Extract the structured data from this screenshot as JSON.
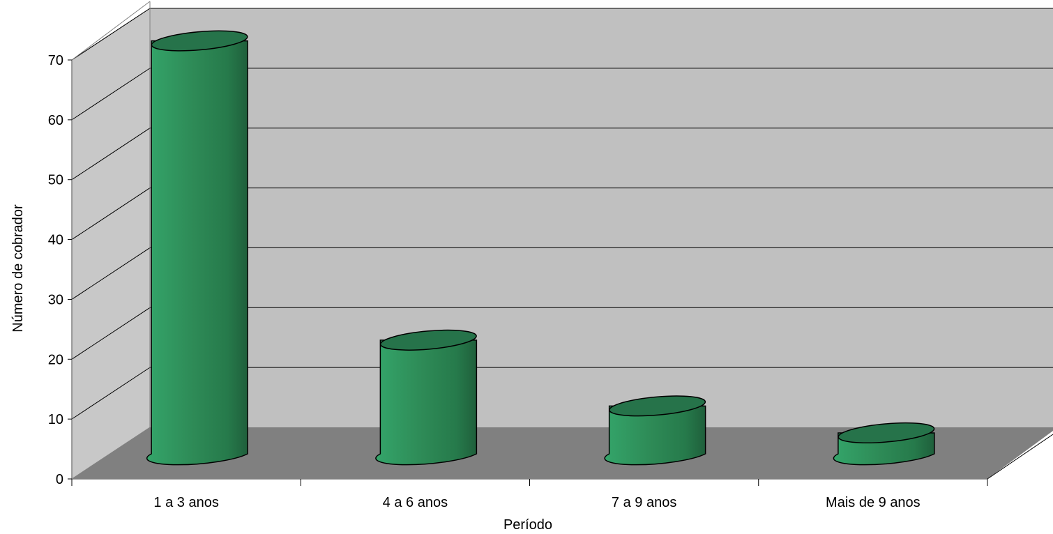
{
  "chart_data": {
    "type": "bar",
    "style": "3d-cylinder",
    "categories": [
      "1 a 3 anos",
      "4 a 6 anos",
      "7 a 9 anos",
      "Mais de 9 anos"
    ],
    "series": [
      {
        "values": [
          69,
          19,
          8,
          3.5
        ]
      }
    ],
    "title": "",
    "xlabel": "Período",
    "ylabel": "Número de cobrador",
    "ylim": [
      0,
      70
    ],
    "yticks": [
      "0",
      "10",
      "20",
      "30",
      "40",
      "50",
      "60",
      "70"
    ],
    "grid": true,
    "legend": "none",
    "colors": {
      "bar": "#2e8b57",
      "bar_top": "#26734a",
      "back_wall": "#c0c0c0",
      "side_wall": "#c8c8c8",
      "floor": "#808080",
      "gridline": "#000000"
    }
  }
}
